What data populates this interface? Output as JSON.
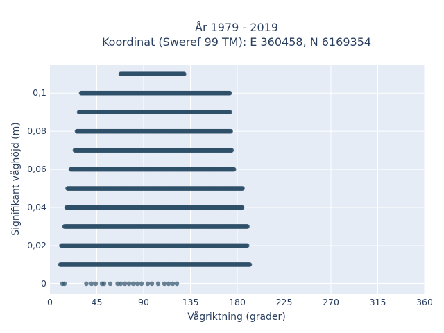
{
  "chart_data": {
    "type": "scatter",
    "title": "År 1979 - 2019",
    "subtitle": "Koordinat (Sweref 99 TM): E 360458, N 6169354",
    "xlabel": "Vågriktning (grader)",
    "ylabel": "Signifikant våghöjd (m)",
    "xlim": [
      0,
      360
    ],
    "ylim": [
      -0.0055,
      0.115
    ],
    "x_ticks": [
      0,
      45,
      90,
      135,
      180,
      225,
      270,
      315,
      360
    ],
    "x_tick_labels": [
      "0",
      "45",
      "90",
      "135",
      "180",
      "225",
      "270",
      "315",
      "360"
    ],
    "y_ticks": [
      0,
      0.02,
      0.04,
      0.06,
      0.08,
      0.1
    ],
    "y_tick_labels": [
      "0",
      "0,02",
      "0,04",
      "0,06",
      "0,08",
      "0,1"
    ],
    "grid": true,
    "marker_color": "#2f5068",
    "plot_bg": "#e5ecf6",
    "bands": [
      {
        "y": 0.11,
        "x_min": 68,
        "x_max": 129
      },
      {
        "y": 0.1,
        "x_min": 30,
        "x_max": 173
      },
      {
        "y": 0.09,
        "x_min": 28,
        "x_max": 173
      },
      {
        "y": 0.08,
        "x_min": 26,
        "x_max": 174
      },
      {
        "y": 0.07,
        "x_min": 24,
        "x_max": 175
      },
      {
        "y": 0.06,
        "x_min": 20,
        "x_max": 177
      },
      {
        "y": 0.05,
        "x_min": 17,
        "x_max": 185
      },
      {
        "y": 0.04,
        "x_min": 16,
        "x_max": 185
      },
      {
        "y": 0.03,
        "x_min": 14,
        "x_max": 190
      },
      {
        "y": 0.02,
        "x_min": 11,
        "x_max": 190
      },
      {
        "y": 0.01,
        "x_min": 10,
        "x_max": 192
      }
    ],
    "zero_points": [
      {
        "x": 12,
        "y": 0
      },
      {
        "x": 14,
        "y": 0
      },
      {
        "x": 35,
        "y": 0
      },
      {
        "x": 40,
        "y": 0
      },
      {
        "x": 44,
        "y": 0
      },
      {
        "x": 50,
        "y": 0
      },
      {
        "x": 52,
        "y": 0
      },
      {
        "x": 58,
        "y": 0
      },
      {
        "x": 65,
        "y": 0
      },
      {
        "x": 68,
        "y": 0
      },
      {
        "x": 72,
        "y": 0
      },
      {
        "x": 76,
        "y": 0
      },
      {
        "x": 80,
        "y": 0
      },
      {
        "x": 84,
        "y": 0
      },
      {
        "x": 88,
        "y": 0
      },
      {
        "x": 94,
        "y": 0
      },
      {
        "x": 98,
        "y": 0
      },
      {
        "x": 104,
        "y": 0
      },
      {
        "x": 110,
        "y": 0
      },
      {
        "x": 114,
        "y": 0
      },
      {
        "x": 118,
        "y": 0
      },
      {
        "x": 122,
        "y": 0
      }
    ]
  }
}
